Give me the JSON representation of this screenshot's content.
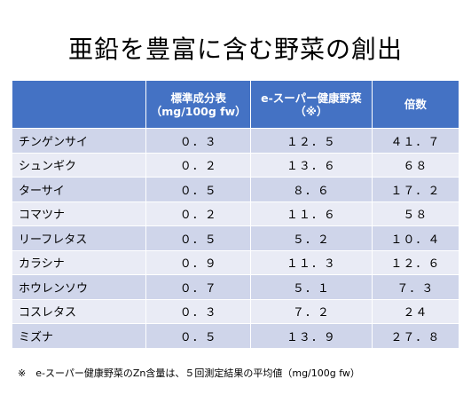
{
  "title": "亜鉛を豊富に含む野菜の創出",
  "table": {
    "headers": [
      "",
      "標準成分表（mg/100g fw）",
      "e-スーパー健康野菜（※）",
      "倍数"
    ],
    "rows": [
      {
        "name": "チンゲンサイ",
        "standard": "０．３",
        "super": "１２．５",
        "ratio": "４１．７"
      },
      {
        "name": "シュンギク",
        "standard": "０．２",
        "super": "１３．６",
        "ratio": "６８"
      },
      {
        "name": "ターサイ",
        "standard": "０．５",
        "super": "８．６",
        "ratio": "１７．２"
      },
      {
        "name": "コマツナ",
        "standard": "０．２",
        "super": "１１．６",
        "ratio": "５８"
      },
      {
        "name": "リーフレタス",
        "standard": "０．５",
        "super": "５．２",
        "ratio": "１０．４"
      },
      {
        "name": "カラシナ",
        "standard": "０．９",
        "super": "１１．３",
        "ratio": "１２．６"
      },
      {
        "name": "ホウレンソウ",
        "standard": "０．７",
        "super": "５．１",
        "ratio": "７．３"
      },
      {
        "name": "コスレタス",
        "standard": "０．３",
        "super": "７．２",
        "ratio": "２４"
      },
      {
        "name": "ミズナ",
        "standard": "０．５",
        "super": "１３．９",
        "ratio": "２７．８"
      }
    ]
  },
  "footnote": "※　e-スーパー健康野菜のZn含量は、５回測定結果の平均値（mg/100g fw）",
  "colors": {
    "header_bg": "#4472c4",
    "row_dark": "#cfd5ea",
    "row_light": "#e9ebf5"
  }
}
